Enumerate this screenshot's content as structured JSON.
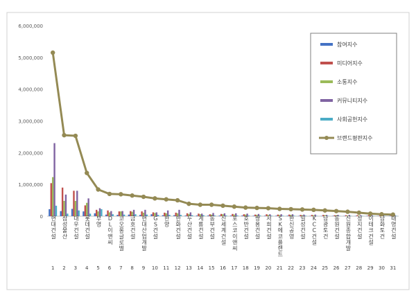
{
  "chart_data": {
    "type": "bar",
    "title": "",
    "xlabel": "",
    "ylabel": "",
    "ylim": [
      0,
      6000000
    ],
    "y_ticks": [
      "0",
      "1,000,000",
      "2,000,000",
      "3,000,000",
      "4,000,000",
      "5,000,000",
      "6,000,000"
    ],
    "grid": false,
    "legend_position": "top-right",
    "categories": [
      "현대건설",
      "삼성물산",
      "대우건설",
      "롯데건설",
      "부영",
      "DL이앤씨",
      "코오롱글로벌",
      "금호건설",
      "현대산업개발",
      "GS건설",
      "한양",
      "한화건설",
      "두산건설",
      "계룡건설",
      "동부건설",
      "신세계건설",
      "포스코이앤씨",
      "호반건설",
      "쌍용건설",
      "서희건설",
      "SK에코플랜트",
      "한신공영",
      "일성건설",
      "KCC건설",
      "남광토건",
      "동원건설",
      "신원종합개발",
      "성지건설",
      "이테크건설",
      "남화토건",
      "태영건설"
    ],
    "ranks": [
      "1",
      "2",
      "3",
      "4",
      "5",
      "6",
      "7",
      "8",
      "9",
      "10",
      "11",
      "12",
      "13",
      "14",
      "15",
      "16",
      "17",
      "18",
      "19",
      "20",
      "21",
      "22",
      "23",
      "24",
      "25",
      "26",
      "27",
      "28",
      "29",
      "30",
      "31"
    ],
    "series": [
      {
        "name": "참여지수",
        "color": "#4472c4",
        "type": "bar",
        "values": [
          220000,
          160000,
          230000,
          150000,
          90000,
          50000,
          40000,
          50000,
          40000,
          60000,
          30000,
          30000,
          20000,
          20000,
          20000,
          20000,
          20000,
          20000,
          15000,
          15000,
          15000,
          15000,
          10000,
          10000,
          10000,
          10000,
          10000,
          10000,
          10000,
          8000,
          10000
        ]
      },
      {
        "name": "미디어지수",
        "color": "#c0504d",
        "type": "bar",
        "values": [
          1040000,
          900000,
          800000,
          340000,
          200000,
          180000,
          150000,
          160000,
          150000,
          120000,
          110000,
          110000,
          90000,
          80000,
          60000,
          70000,
          70000,
          60000,
          50000,
          60000,
          50000,
          50000,
          40000,
          40000,
          40000,
          30000,
          30000,
          30000,
          30000,
          25000,
          30000
        ]
      },
      {
        "name": "소통지수",
        "color": "#9bbb59",
        "type": "bar",
        "values": [
          1230000,
          480000,
          480000,
          420000,
          150000,
          120000,
          150000,
          140000,
          110000,
          100000,
          90000,
          90000,
          70000,
          60000,
          50000,
          60000,
          50000,
          50000,
          40000,
          40000,
          40000,
          40000,
          30000,
          30000,
          30000,
          30000,
          20000,
          20000,
          20000,
          15000,
          20000
        ]
      },
      {
        "name": "커뮤니티지수",
        "color": "#8064a2",
        "type": "bar",
        "values": [
          2300000,
          680000,
          800000,
          560000,
          250000,
          160000,
          160000,
          200000,
          200000,
          120000,
          180000,
          200000,
          120000,
          80000,
          100000,
          90000,
          90000,
          80000,
          70000,
          60000,
          60000,
          60000,
          50000,
          50000,
          40000,
          40000,
          40000,
          30000,
          30000,
          25000,
          30000
        ]
      },
      {
        "name": "사회공헌지수",
        "color": "#4bacc6",
        "type": "bar",
        "values": [
          330000,
          80000,
          180000,
          80000,
          220000,
          60000,
          50000,
          60000,
          50000,
          40000,
          40000,
          40000,
          30000,
          30000,
          20000,
          20000,
          20000,
          20000,
          20000,
          15000,
          15000,
          15000,
          15000,
          10000,
          10000,
          10000,
          10000,
          10000,
          10000,
          8000,
          10000
        ]
      },
      {
        "name": "브랜드평판지수",
        "color": "#948a54",
        "type": "line",
        "values": [
          5150000,
          2550000,
          2530000,
          1360000,
          840000,
          700000,
          690000,
          650000,
          610000,
          560000,
          530000,
          500000,
          390000,
          360000,
          360000,
          330000,
          300000,
          270000,
          260000,
          250000,
          230000,
          220000,
          210000,
          200000,
          180000,
          160000,
          140000,
          110000,
          80000,
          60000,
          50000
        ]
      }
    ]
  }
}
